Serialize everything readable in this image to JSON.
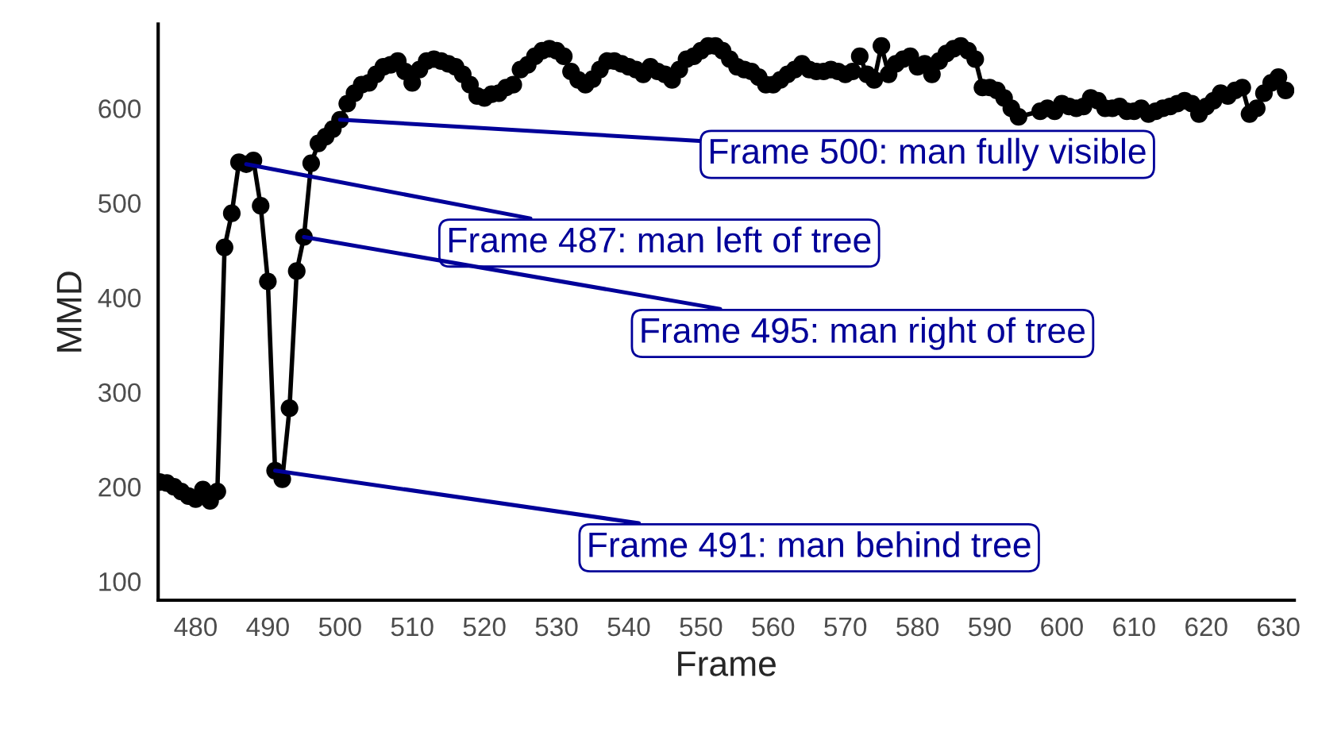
{
  "chart_data": {
    "type": "line",
    "xlabel": "Frame",
    "ylabel": "MMD",
    "x": [
      475,
      476,
      477,
      478,
      479,
      480,
      481,
      482,
      483,
      484,
      485,
      486,
      487,
      488,
      489,
      490,
      491,
      492,
      493,
      494,
      495,
      496,
      497,
      498,
      499,
      500,
      501,
      502,
      503,
      504,
      505,
      506,
      507,
      508,
      509,
      510,
      511,
      512,
      513,
      514,
      515,
      516,
      517,
      518,
      519,
      520,
      521,
      522,
      523,
      524,
      525,
      526,
      527,
      528,
      529,
      530,
      531,
      532,
      533,
      534,
      535,
      536,
      537,
      538,
      539,
      540,
      541,
      542,
      543,
      544,
      545,
      546,
      547,
      548,
      549,
      550,
      551,
      552,
      553,
      554,
      555,
      556,
      557,
      558,
      559,
      560,
      561,
      562,
      563,
      564,
      565,
      566,
      567,
      568,
      569,
      570,
      571,
      572,
      573,
      574,
      575,
      576,
      577,
      578,
      579,
      580,
      581,
      582,
      583,
      584,
      585,
      586,
      587,
      588,
      589,
      590,
      591,
      592,
      593,
      594,
      595,
      596,
      597,
      598,
      599,
      600,
      601,
      602,
      603,
      604,
      605,
      606,
      607,
      608,
      609,
      610,
      611,
      612,
      613,
      614,
      615,
      616,
      617,
      618,
      619,
      620,
      621,
      622,
      623,
      624,
      625,
      626,
      627,
      628,
      629,
      630,
      631
    ],
    "series": [
      {
        "color": "#000000",
        "values": [
          205,
          204,
          200,
          195,
          190,
          187,
          197,
          185,
          195,
          453,
          489,
          543,
          541,
          545,
          497,
          417,
          217,
          208,
          283,
          428,
          464,
          542,
          563,
          570,
          578,
          588,
          605,
          616,
          625,
          627,
          636,
          644,
          646,
          650,
          639,
          627,
          641,
          650,
          652,
          650,
          647,
          644,
          636,
          625,
          613,
          611,
          615,
          616,
          622,
          625,
          641,
          646,
          655,
          661,
          663,
          661,
          655,
          639,
          630,
          625,
          631,
          641,
          650,
          650,
          647,
          644,
          641,
          636,
          644,
          639,
          636,
          630,
          641,
          652,
          655,
          661,
          666,
          666,
          661,
          652,
          644,
          641,
          639,
          633,
          625,
          625,
          630,
          636,
          641,
          647,
          641,
          639,
          639,
          641,
          639,
          636,
          639,
          655,
          636,
          630,
          666,
          636,
          647,
          652,
          655,
          644,
          647,
          636,
          650,
          658,
          663,
          666,
          661,
          652,
          622,
          622,
          619,
          611,
          600,
          591,
          null,
          null,
          597,
          600,
          597,
          605,
          602,
          600,
          602,
          611,
          608,
          600,
          600,
          602,
          597,
          597,
          600,
          594,
          597,
          600,
          602,
          605,
          608,
          605,
          594,
          602,
          608,
          616,
          613,
          619,
          622,
          594,
          600,
          616,
          627,
          633,
          619
        ]
      }
    ],
    "marker": "circle",
    "line_style": "solid",
    "grid": false,
    "legend": false,
    "xlim": [
      474.8,
      632.2
    ],
    "xticks": [
      480,
      490,
      500,
      510,
      520,
      530,
      540,
      550,
      560,
      570,
      580,
      590,
      600,
      610,
      620,
      630
    ],
    "ylim": [
      80,
      689
    ],
    "yticks": [
      100,
      200,
      300,
      400,
      500,
      600
    ],
    "annotations": [
      {
        "text": "Frame 500: man fully visible",
        "x": 500,
        "y": 588
      },
      {
        "text": "Frame 487: man left of tree",
        "x": 487,
        "y": 541
      },
      {
        "text": "Frame 495: man right of tree",
        "x": 495,
        "y": 464
      },
      {
        "text": "Frame 491: man behind tree",
        "x": 491,
        "y": 217
      }
    ]
  }
}
